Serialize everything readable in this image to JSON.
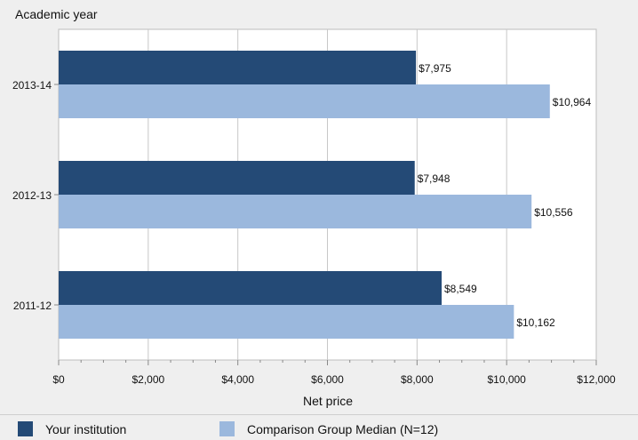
{
  "chart_data": {
    "type": "bar",
    "orientation": "horizontal",
    "ytitle": "Academic year",
    "xlabel": "Net price",
    "categories": [
      "2013-14",
      "2012-13",
      "2011-12"
    ],
    "series": [
      {
        "name": "Your institution",
        "color": "#244a76",
        "values": [
          7975,
          7948,
          8549
        ],
        "labels": [
          "$7,975",
          "$7,948",
          "$8,549"
        ]
      },
      {
        "name": "Comparison Group Median (N=12)",
        "color": "#9bb8dd",
        "values": [
          10964,
          10556,
          10162
        ],
        "labels": [
          "$10,964",
          "$10,556",
          "$10,162"
        ]
      }
    ],
    "xlim": [
      0,
      12000
    ],
    "xticks": [
      0,
      2000,
      4000,
      6000,
      8000,
      10000,
      12000
    ],
    "xtick_labels": [
      "$0",
      "$2,000",
      "$4,000",
      "$6,000",
      "$8,000",
      "$10,000",
      "$12,000"
    ],
    "grid": true,
    "legend_position": "bottom"
  },
  "legend": {
    "items": [
      {
        "label": "Your institution",
        "color": "#244a76"
      },
      {
        "label": "Comparison Group Median (N=12)",
        "color": "#9bb8dd"
      }
    ]
  }
}
